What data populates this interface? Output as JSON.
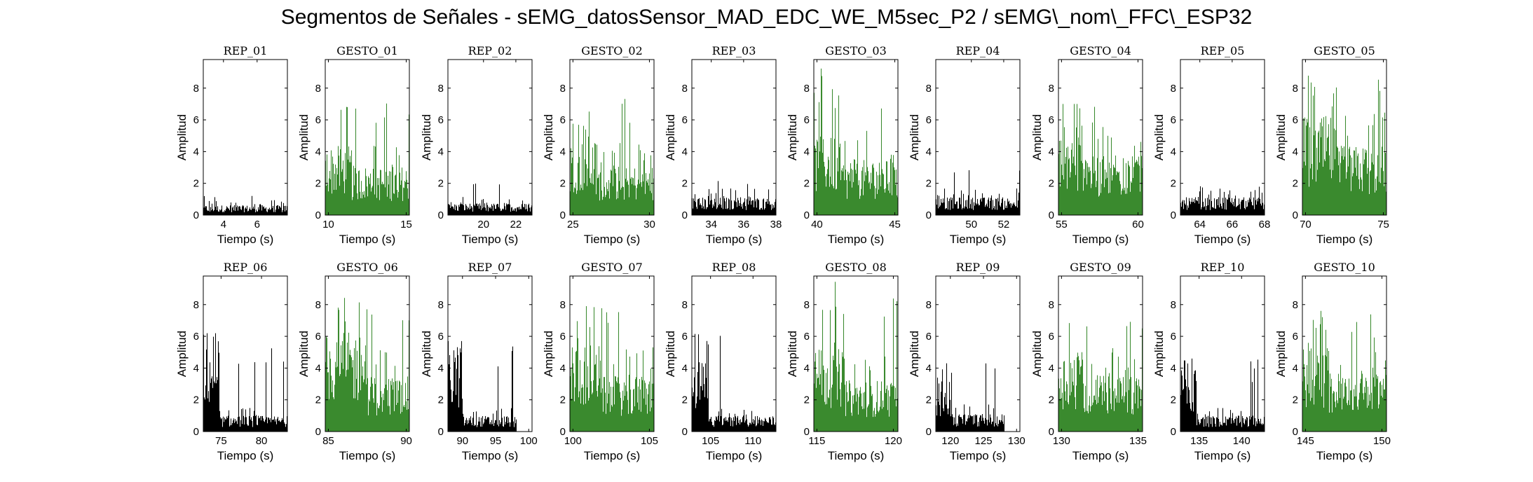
{
  "title": "Segmentos de Señales - sEMG_datosSensor_MAD_EDC_WE_M5sec_P2 / sEMG\\_nom\\_FFC\\_ESP32",
  "colors": {
    "rep": "#000000",
    "gesto": "#3a8a2e"
  },
  "chart_data": [
    {
      "type": "area",
      "title": "REP_01",
      "kind": "rep",
      "xlabel": "Tiempo (s)",
      "ylabel": "Amplitud",
      "xlim": [
        2.8,
        7.8
      ],
      "ylim": [
        0,
        9.8
      ],
      "xticks": [
        4,
        6
      ],
      "yticks": [
        0,
        2,
        4,
        6,
        8
      ],
      "level": 0.5,
      "peak": 1.3,
      "front_level": 0.5,
      "front_until": null,
      "data_end": 7.8
    },
    {
      "type": "area",
      "title": "GESTO_01",
      "kind": "gesto",
      "xlabel": "Tiempo (s)",
      "ylabel": "Amplitud",
      "xlim": [
        9.8,
        15.2
      ],
      "ylim": [
        0,
        9.8
      ],
      "xticks": [
        10,
        15
      ],
      "yticks": [
        0,
        2,
        4,
        6,
        8
      ],
      "level": 2.5,
      "peak": 7.1,
      "front_level": 3.5,
      "front_until": 11.5,
      "data_end": 15.2
    },
    {
      "type": "area",
      "title": "REP_02",
      "kind": "rep",
      "xlabel": "Tiempo (s)",
      "ylabel": "Amplitud",
      "xlim": [
        17.8,
        23
      ],
      "ylim": [
        0,
        9.8
      ],
      "xticks": [
        20,
        22
      ],
      "yticks": [
        0,
        2,
        4,
        6,
        8
      ],
      "level": 0.6,
      "peak": 2.0,
      "front_level": 0.6,
      "front_until": null,
      "data_end": 23
    },
    {
      "type": "area",
      "title": "GESTO_02",
      "kind": "gesto",
      "xlabel": "Tiempo (s)",
      "ylabel": "Amplitud",
      "xlim": [
        24.8,
        30.3
      ],
      "ylim": [
        0,
        9.8
      ],
      "xticks": [
        25,
        30
      ],
      "yticks": [
        0,
        2,
        4,
        6,
        8
      ],
      "level": 2.5,
      "peak": 7.4,
      "front_level": 3.8,
      "front_until": 26.5,
      "data_end": 30.3
    },
    {
      "type": "area",
      "title": "REP_03",
      "kind": "rep",
      "xlabel": "Tiempo (s)",
      "ylabel": "Amplitud",
      "xlim": [
        32.8,
        38
      ],
      "ylim": [
        0,
        9.8
      ],
      "xticks": [
        34,
        36,
        38
      ],
      "yticks": [
        0,
        2,
        4,
        6,
        8
      ],
      "level": 0.9,
      "peak": 2.4,
      "front_level": 0.9,
      "front_until": null,
      "data_end": 38
    },
    {
      "type": "area",
      "title": "GESTO_03",
      "kind": "gesto",
      "xlabel": "Tiempo (s)",
      "ylabel": "Amplitud",
      "xlim": [
        39.8,
        45.2
      ],
      "ylim": [
        0,
        9.8
      ],
      "xticks": [
        40,
        45
      ],
      "yticks": [
        0,
        2,
        4,
        6,
        8
      ],
      "level": 2.8,
      "peak": 9.3,
      "front_level": 4.0,
      "front_until": 41.5,
      "data_end": 45.2
    },
    {
      "type": "area",
      "title": "REP_04",
      "kind": "rep",
      "xlabel": "Tiempo (s)",
      "ylabel": "Amplitud",
      "xlim": [
        47.8,
        53
      ],
      "ylim": [
        0,
        9.8
      ],
      "xticks": [
        50,
        52
      ],
      "yticks": [
        0,
        2,
        4,
        6,
        8
      ],
      "level": 0.9,
      "peak": 3.0,
      "front_level": 0.9,
      "front_until": null,
      "data_end": 53
    },
    {
      "type": "area",
      "title": "GESTO_04",
      "kind": "gesto",
      "xlabel": "Tiempo (s)",
      "ylabel": "Amplitud",
      "xlim": [
        54.8,
        60.3
      ],
      "ylim": [
        0,
        9.8
      ],
      "xticks": [
        55,
        60
      ],
      "yticks": [
        0,
        2,
        4,
        6,
        8
      ],
      "level": 3.0,
      "peak": 7.0,
      "front_level": 4.2,
      "front_until": 56.8,
      "data_end": 60.3
    },
    {
      "type": "area",
      "title": "REP_05",
      "kind": "rep",
      "xlabel": "Tiempo (s)",
      "ylabel": "Amplitud",
      "xlim": [
        62.8,
        68
      ],
      "ylim": [
        0,
        9.8
      ],
      "xticks": [
        64,
        66,
        68
      ],
      "yticks": [
        0,
        2,
        4,
        6,
        8
      ],
      "level": 0.9,
      "peak": 1.9,
      "front_level": 0.9,
      "front_until": null,
      "data_end": 68
    },
    {
      "type": "area",
      "title": "GESTO_05",
      "kind": "gesto",
      "xlabel": "Tiempo (s)",
      "ylabel": "Amplitud",
      "xlim": [
        69.8,
        75.2
      ],
      "ylim": [
        0,
        9.8
      ],
      "xticks": [
        70,
        75
      ],
      "yticks": [
        0,
        2,
        4,
        6,
        8
      ],
      "level": 3.5,
      "peak": 8.8,
      "front_level": 5.0,
      "front_until": 72.0,
      "data_end": 75.2
    },
    {
      "type": "area",
      "title": "REP_06",
      "kind": "rep",
      "xlabel": "Tiempo (s)",
      "ylabel": "Amplitud",
      "xlim": [
        72.8,
        83.2
      ],
      "ylim": [
        0,
        9.8
      ],
      "xticks": [
        75,
        80
      ],
      "yticks": [
        0,
        2,
        4,
        6,
        8
      ],
      "level": 0.8,
      "peak": 6.2,
      "front_level": 4.5,
      "front_until": 74.8,
      "data_end": 83.2
    },
    {
      "type": "area",
      "title": "GESTO_06",
      "kind": "gesto",
      "xlabel": "Tiempo (s)",
      "ylabel": "Amplitud",
      "xlim": [
        84.8,
        90.2
      ],
      "ylim": [
        0,
        9.8
      ],
      "xticks": [
        85,
        90
      ],
      "yticks": [
        0,
        2,
        4,
        6,
        8
      ],
      "level": 2.8,
      "peak": 9.0,
      "front_level": 5.0,
      "front_until": 87.5,
      "data_end": 90.2
    },
    {
      "type": "area",
      "title": "REP_07",
      "kind": "rep",
      "xlabel": "Tiempo (s)",
      "ylabel": "Amplitud",
      "xlim": [
        87.8,
        100.5
      ],
      "ylim": [
        0,
        9.8
      ],
      "xticks": [
        90,
        95,
        100
      ],
      "yticks": [
        0,
        2,
        4,
        6,
        8
      ],
      "level": 0.8,
      "peak": 5.7,
      "front_level": 4.0,
      "front_until": 90.0,
      "data_end": 98.2
    },
    {
      "type": "area",
      "title": "GESTO_07",
      "kind": "gesto",
      "xlabel": "Tiempo (s)",
      "ylabel": "Amplitud",
      "xlim": [
        99.8,
        105.3
      ],
      "ylim": [
        0,
        9.8
      ],
      "xticks": [
        100,
        105
      ],
      "yticks": [
        0,
        2,
        4,
        6,
        8
      ],
      "level": 2.8,
      "peak": 7.9,
      "front_level": 4.5,
      "front_until": 101.8,
      "data_end": 105.3
    },
    {
      "type": "area",
      "title": "REP_08",
      "kind": "rep",
      "xlabel": "Tiempo (s)",
      "ylabel": "Amplitud",
      "xlim": [
        102.8,
        112.7
      ],
      "ylim": [
        0,
        9.8
      ],
      "xticks": [
        105,
        110
      ],
      "yticks": [
        0,
        2,
        4,
        6,
        8
      ],
      "level": 0.8,
      "peak": 6.4,
      "front_level": 3.5,
      "front_until": 104.8,
      "data_end": 112.7
    },
    {
      "type": "area",
      "title": "GESTO_08",
      "kind": "gesto",
      "xlabel": "Tiempo (s)",
      "ylabel": "Amplitud",
      "xlim": [
        114.8,
        120.3
      ],
      "ylim": [
        0,
        9.8
      ],
      "xticks": [
        115,
        120
      ],
      "yticks": [
        0,
        2,
        4,
        6,
        8
      ],
      "level": 2.6,
      "peak": 9.6,
      "front_level": 4.2,
      "front_until": 116.8,
      "data_end": 120.3
    },
    {
      "type": "area",
      "title": "REP_09",
      "kind": "rep",
      "xlabel": "Tiempo (s)",
      "ylabel": "Amplitud",
      "xlim": [
        117.8,
        130.5
      ],
      "ylim": [
        0,
        9.8
      ],
      "xticks": [
        120,
        125,
        130
      ],
      "yticks": [
        0,
        2,
        4,
        6,
        8
      ],
      "level": 0.9,
      "peak": 4.7,
      "front_level": 2.6,
      "front_until": 120.0,
      "data_end": 128.2
    },
    {
      "type": "area",
      "title": "GESTO_09",
      "kind": "gesto",
      "xlabel": "Tiempo (s)",
      "ylabel": "Amplitud",
      "xlim": [
        129.8,
        135.3
      ],
      "ylim": [
        0,
        9.8
      ],
      "xticks": [
        130,
        135
      ],
      "yticks": [
        0,
        2,
        4,
        6,
        8
      ],
      "level": 3.0,
      "peak": 7.4,
      "front_level": 4.0,
      "front_until": 131.5,
      "data_end": 135.3
    },
    {
      "type": "area",
      "title": "REP_10",
      "kind": "rep",
      "xlabel": "Tiempo (s)",
      "ylabel": "Amplitud",
      "xlim": [
        132.8,
        142.7
      ],
      "ylim": [
        0,
        9.8
      ],
      "xticks": [
        135,
        140
      ],
      "yticks": [
        0,
        2,
        4,
        6,
        8
      ],
      "level": 0.8,
      "peak": 4.6,
      "front_level": 3.2,
      "front_until": 134.7,
      "data_end": 142.7
    },
    {
      "type": "area",
      "title": "GESTO_10",
      "kind": "gesto",
      "xlabel": "Tiempo (s)",
      "ylabel": "Amplitud",
      "xlim": [
        144.8,
        150.3
      ],
      "ylim": [
        0,
        9.8
      ],
      "xticks": [
        145,
        150
      ],
      "yticks": [
        0,
        2,
        4,
        6,
        8
      ],
      "level": 3.0,
      "peak": 7.6,
      "front_level": 4.2,
      "front_until": 146.5,
      "data_end": 150.3
    }
  ]
}
